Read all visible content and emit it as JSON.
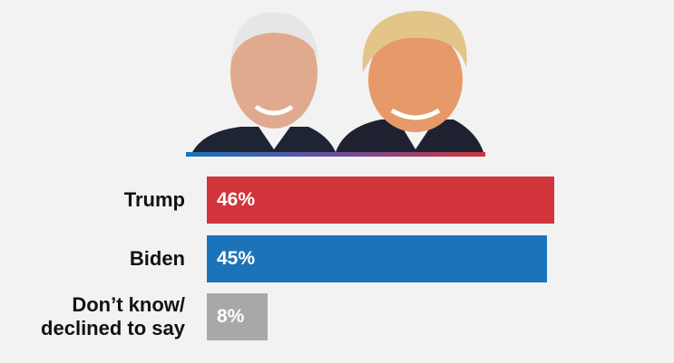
{
  "chart_data": {
    "type": "bar",
    "orientation": "horizontal",
    "categories": [
      "Trump",
      "Biden",
      "Don’t know/ declined to say"
    ],
    "values": [
      46,
      45,
      8
    ],
    "value_labels": [
      "46%",
      "45%",
      "8%"
    ],
    "colors": [
      "#d1343b",
      "#1b74b9",
      "#a8a8a8"
    ]
  }
}
